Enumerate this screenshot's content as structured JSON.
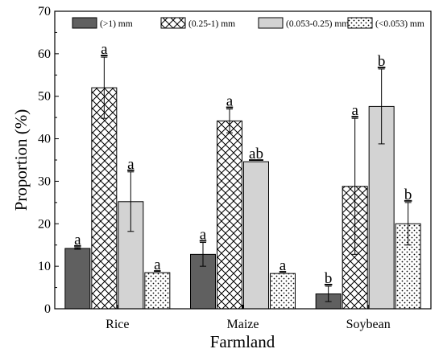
{
  "chart_data": {
    "type": "bar",
    "title": "",
    "xlabel": "Farmland",
    "ylabel": "Proportion (%)",
    "ylim": [
      0,
      70
    ],
    "yticks": [
      0,
      10,
      20,
      30,
      40,
      50,
      60,
      70
    ],
    "grid": false,
    "legend_position": "top",
    "categories": [
      "Rice",
      "Maize",
      "Soybean"
    ],
    "series": [
      {
        "name": "(>1) mm",
        "pattern": "solid-dark",
        "color": "#606060",
        "values": [
          14.2,
          12.8,
          3.5
        ],
        "errors": [
          0.2,
          2.8,
          1.8
        ],
        "letters": [
          "a",
          "a",
          "b"
        ]
      },
      {
        "name": "(0.25-1) mm",
        "pattern": "crosshatch",
        "color": "#ffffff",
        "values": [
          52.0,
          44.2,
          28.8
        ],
        "errors": [
          7.2,
          2.8,
          16.0
        ],
        "letters": [
          "a",
          "a",
          "a"
        ]
      },
      {
        "name": "(0.053-0.25) mm",
        "pattern": "solid-light",
        "color": "#d3d3d3",
        "values": [
          25.2,
          34.6,
          47.6
        ],
        "errors": [
          7.0,
          0.0,
          8.8
        ],
        "letters": [
          "a",
          "ab",
          "b"
        ]
      },
      {
        "name": "(<0.053) mm",
        "pattern": "dots",
        "color": "#ffffff",
        "values": [
          8.5,
          8.3,
          20.0
        ],
        "errors": [
          0.0,
          0.0,
          5.0
        ],
        "letters": [
          "a",
          "a",
          "b"
        ]
      }
    ]
  }
}
